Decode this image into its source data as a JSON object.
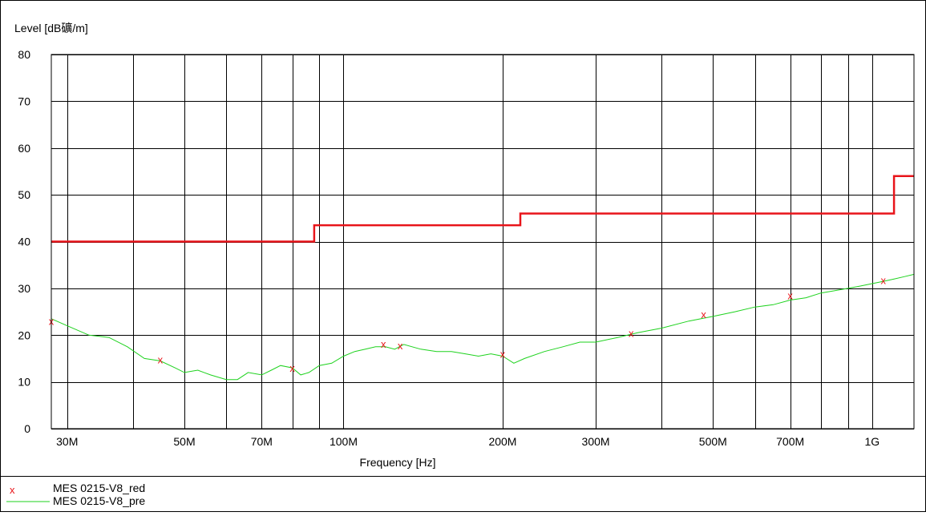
{
  "chart_data": {
    "type": "line",
    "ylabel": "Level [dB礦/m]",
    "xlabel": "Frequency [Hz]",
    "x_scale": "log",
    "xlim": [
      28000000,
      1200000000
    ],
    "ylim": [
      0,
      80
    ],
    "y_ticks": [
      0,
      10,
      20,
      30,
      40,
      50,
      60,
      70,
      80
    ],
    "x_tick_values": [
      30000000,
      50000000,
      70000000,
      100000000,
      200000000,
      300000000,
      500000000,
      700000000,
      1000000000
    ],
    "x_tick_labels": [
      "30M",
      "50M",
      "70M",
      "100M",
      "200M",
      "300M",
      "500M",
      "700M",
      "1G"
    ],
    "x_gridlines": [
      30000000,
      40000000,
      50000000,
      60000000,
      70000000,
      80000000,
      90000000,
      100000000,
      200000000,
      300000000,
      400000000,
      500000000,
      600000000,
      700000000,
      800000000,
      900000000,
      1000000000
    ],
    "grid": true,
    "limit_line": {
      "color": "#e8141a",
      "points": [
        [
          28000000,
          40
        ],
        [
          88000000,
          40
        ],
        [
          88000000,
          43.5
        ],
        [
          216000000,
          43.5
        ],
        [
          216000000,
          46
        ],
        [
          1100000000,
          46
        ],
        [
          1100000000,
          54
        ],
        [
          1200000000,
          54
        ]
      ]
    },
    "series": [
      {
        "name": "MES  0215-V8_pre",
        "color": "#1ed21e",
        "x": [
          28000000,
          30000000,
          33000000,
          36000000,
          39000000,
          42000000,
          45000000,
          48000000,
          50000000,
          53000000,
          56000000,
          60000000,
          63000000,
          66000000,
          70000000,
          73000000,
          76000000,
          80000000,
          83000000,
          86000000,
          90000000,
          95000000,
          100000000,
          105000000,
          110000000,
          115000000,
          120000000,
          125000000,
          130000000,
          140000000,
          150000000,
          160000000,
          170000000,
          180000000,
          190000000,
          200000000,
          210000000,
          220000000,
          240000000,
          260000000,
          280000000,
          300000000,
          330000000,
          360000000,
          400000000,
          450000000,
          500000000,
          550000000,
          600000000,
          650000000,
          700000000,
          750000000,
          800000000,
          850000000,
          900000000,
          950000000,
          1000000000,
          1050000000,
          1100000000,
          1150000000,
          1200000000
        ],
        "y": [
          23.5,
          22,
          20,
          19.5,
          17.5,
          15,
          14.5,
          13,
          12,
          12.5,
          11.5,
          10.5,
          10.5,
          12,
          11.5,
          12.5,
          13.5,
          13,
          11.5,
          12,
          13.5,
          14,
          15.5,
          16.5,
          17,
          17.5,
          17.5,
          17,
          18,
          17,
          16.5,
          16.5,
          16,
          15.5,
          16,
          15.5,
          14,
          15,
          16.5,
          17.5,
          18.5,
          18.5,
          19.5,
          20.5,
          21.5,
          23,
          24,
          25,
          26,
          26.5,
          27.5,
          28,
          29,
          29.5,
          30,
          30.5,
          31,
          31.5,
          32,
          32.5,
          33
        ]
      },
      {
        "name": "MES  0215-V8_red",
        "color": "#e8141a",
        "marker": "x",
        "x": [
          28000000,
          45000000,
          80000000,
          119000000,
          128000000,
          200000000,
          350000000,
          480000000,
          700000000,
          1050000000
        ],
        "y": [
          23,
          14.8,
          13,
          18.2,
          17.8,
          16,
          20.5,
          24.5,
          28.5,
          31.8
        ]
      }
    ],
    "legend": [
      {
        "symbol": "x",
        "label": "MES  0215-V8_red"
      },
      {
        "symbol": "line",
        "label": "MES  0215-V8_pre"
      }
    ],
    "legend_position": "bottom-left"
  }
}
